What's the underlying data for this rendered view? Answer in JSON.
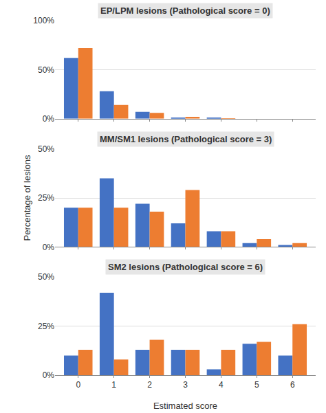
{
  "chart_data": [
    {
      "type": "bar",
      "title": "EP/LPM lesions (Pathological score = 0)",
      "x": [
        0,
        1,
        2,
        3,
        4,
        5,
        6
      ],
      "xlim": [
        -0.65,
        6.65
      ],
      "xticks": [
        0,
        1,
        2,
        3,
        4,
        5,
        6
      ],
      "ylim": [
        0,
        1.0
      ],
      "yticks": [
        {
          "value": 0,
          "label": "0%"
        },
        {
          "value": 0.5,
          "label": "50%"
        },
        {
          "value": 1.0,
          "label": "100%"
        }
      ],
      "grid": true,
      "tick_labels": "y",
      "series": [
        {
          "color": "#4472C4",
          "values": [
            0.62,
            0.28,
            0.07,
            0.01,
            0.01,
            0.0,
            0.0
          ]
        },
        {
          "color": "#ED7D31",
          "values": [
            0.72,
            0.14,
            0.06,
            0.02,
            0.005,
            0.0,
            0.0
          ]
        }
      ]
    },
    {
      "type": "bar",
      "title": "MM/SM1 lesions (Pathological score = 3)",
      "ylabel": "Percentage of lesions",
      "x": [
        0,
        1,
        2,
        3,
        4,
        5,
        6
      ],
      "xlim": [
        -0.65,
        6.65
      ],
      "xticks": [
        0,
        1,
        2,
        3,
        4,
        5,
        6
      ],
      "ylim": [
        0,
        0.5
      ],
      "yticks": [
        {
          "value": 0,
          "label": "0%"
        },
        {
          "value": 0.25,
          "label": "25%"
        },
        {
          "value": 0.5,
          "label": "50%"
        }
      ],
      "grid": true,
      "tick_labels": "y",
      "series": [
        {
          "color": "#4472C4",
          "values": [
            0.2,
            0.35,
            0.22,
            0.12,
            0.08,
            0.02,
            0.01
          ]
        },
        {
          "color": "#ED7D31",
          "values": [
            0.2,
            0.2,
            0.18,
            0.29,
            0.08,
            0.04,
            0.02
          ]
        }
      ]
    },
    {
      "type": "bar",
      "title": "SM2 lesions (Pathological score = 6)",
      "xlabel": "Estimated score",
      "x": [
        0,
        1,
        2,
        3,
        4,
        5,
        6
      ],
      "xlim": [
        -0.65,
        6.65
      ],
      "xticks": [
        0,
        1,
        2,
        3,
        4,
        5,
        6
      ],
      "ylim": [
        0,
        0.5
      ],
      "yticks": [
        {
          "value": 0,
          "label": "0%"
        },
        {
          "value": 0.25,
          "label": "25%"
        },
        {
          "value": 0.5,
          "label": "50%"
        }
      ],
      "grid": true,
      "series": [
        {
          "color": "#4472C4",
          "values": [
            0.1,
            0.42,
            0.13,
            0.13,
            0.03,
            0.16,
            0.1
          ]
        },
        {
          "color": "#ED7D31",
          "values": [
            0.13,
            0.08,
            0.18,
            0.13,
            0.13,
            0.17,
            0.26
          ]
        }
      ]
    }
  ]
}
